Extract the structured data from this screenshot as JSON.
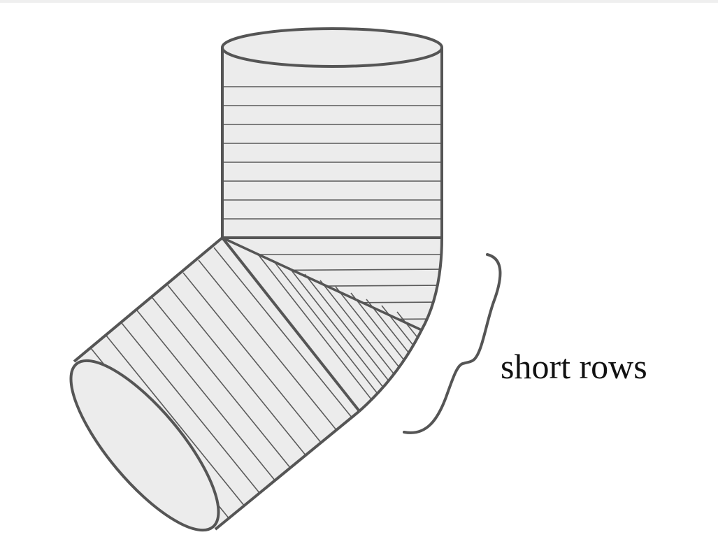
{
  "diagram": {
    "label": "short rows",
    "colors": {
      "fill": "#ececec",
      "outline": "#555555",
      "hatch": "#5a5a5a",
      "text": "#111111"
    }
  }
}
